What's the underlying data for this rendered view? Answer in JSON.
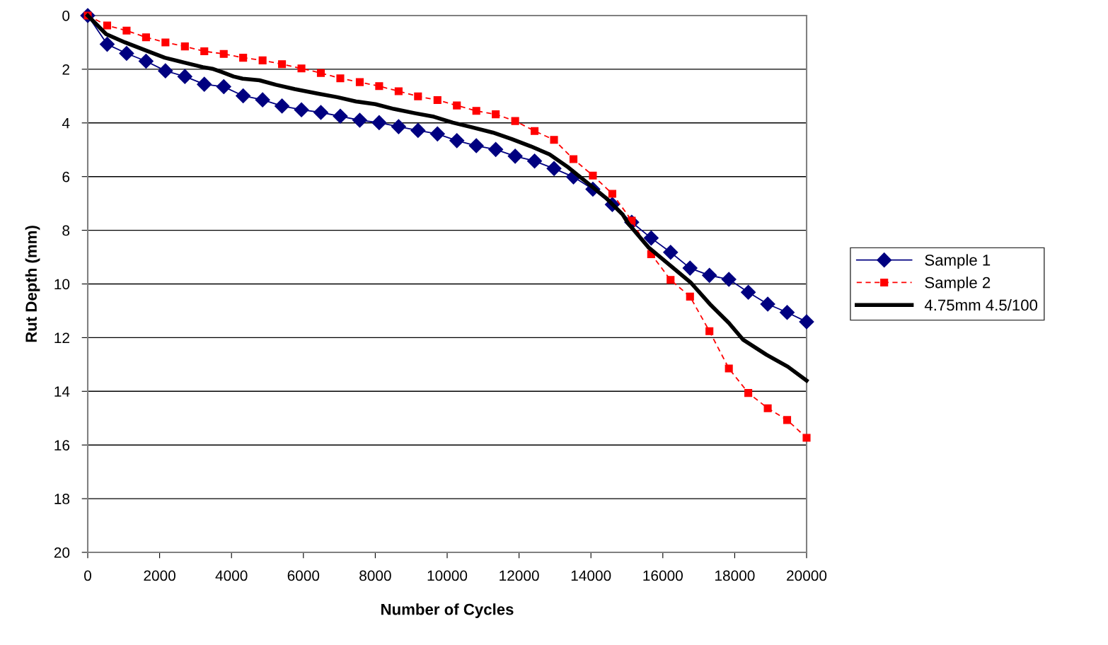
{
  "chart_data": {
    "type": "line",
    "xlabel": "Number of Cycles",
    "ylabel": "Rut Depth (mm)",
    "x": [
      0,
      541,
      1081,
      1622,
      2162,
      2703,
      3243,
      3784,
      4324,
      4865,
      5405,
      5946,
      6486,
      7027,
      7568,
      8108,
      8649,
      9189,
      9730,
      10270,
      10811,
      11351,
      11892,
      12432,
      12973,
      13514,
      14054,
      14595,
      15135,
      15676,
      16216,
      16757,
      17297,
      17838,
      18378,
      18919,
      19459,
      20000
    ],
    "series": [
      {
        "name": "Sample 1",
        "color": "#000080",
        "marker": "diamond",
        "line_style": "solid",
        "values": [
          0,
          1.07,
          1.41,
          1.7,
          2.06,
          2.27,
          2.56,
          2.65,
          2.99,
          3.14,
          3.37,
          3.51,
          3.61,
          3.75,
          3.9,
          3.99,
          4.14,
          4.28,
          4.41,
          4.66,
          4.85,
          4.99,
          5.24,
          5.42,
          5.7,
          6.01,
          6.47,
          7.04,
          7.7,
          8.29,
          8.82,
          9.41,
          9.68,
          9.83,
          10.31,
          10.75,
          11.06,
          11.41
        ]
      },
      {
        "name": "Sample 2",
        "color": "#ff0000",
        "marker": "square",
        "line_style": "dashed",
        "values": [
          0,
          0.37,
          0.56,
          0.81,
          1.0,
          1.15,
          1.33,
          1.43,
          1.57,
          1.67,
          1.81,
          1.97,
          2.14,
          2.34,
          2.48,
          2.63,
          2.82,
          3.01,
          3.15,
          3.35,
          3.55,
          3.68,
          3.93,
          4.3,
          4.63,
          5.35,
          5.96,
          6.64,
          7.64,
          8.89,
          9.85,
          10.47,
          11.76,
          13.15,
          14.06,
          14.63,
          15.07,
          15.73
        ]
      },
      {
        "name": "4.75mm 4.5/100",
        "color": "#000000",
        "marker": "none",
        "line_style": "solid",
        "x": [
          0,
          512,
          1037,
          1555,
          2145,
          2677,
          3202,
          3465,
          3720,
          4055,
          4311,
          4777,
          5236,
          5761,
          6417,
          6942,
          7466,
          8000,
          8518,
          9108,
          9633,
          10157,
          10683,
          11273,
          11797,
          12323,
          12848,
          13373,
          13898,
          14423,
          14882,
          15045,
          15604,
          16195,
          16785,
          17309,
          17835,
          18228,
          18885,
          19475,
          20000
        ],
        "values": [
          0,
          0.69,
          1.0,
          1.27,
          1.57,
          1.75,
          1.92,
          1.98,
          2.1,
          2.27,
          2.35,
          2.41,
          2.58,
          2.74,
          2.91,
          3.04,
          3.2,
          3.3,
          3.48,
          3.64,
          3.77,
          3.99,
          4.16,
          4.36,
          4.6,
          4.87,
          5.17,
          5.66,
          6.23,
          6.8,
          7.41,
          7.76,
          8.64,
          9.3,
          9.96,
          10.75,
          11.45,
          12.07,
          12.64,
          13.08,
          13.6
        ]
      }
    ],
    "xlim": [
      0,
      20000
    ],
    "xticks": [
      0,
      2000,
      4000,
      6000,
      8000,
      10000,
      12000,
      14000,
      16000,
      18000,
      20000
    ],
    "ylim": [
      20,
      0
    ],
    "yticks": [
      0,
      2,
      4,
      6,
      8,
      10,
      12,
      14,
      16,
      18,
      20
    ],
    "grid": "y",
    "legend": "right"
  }
}
